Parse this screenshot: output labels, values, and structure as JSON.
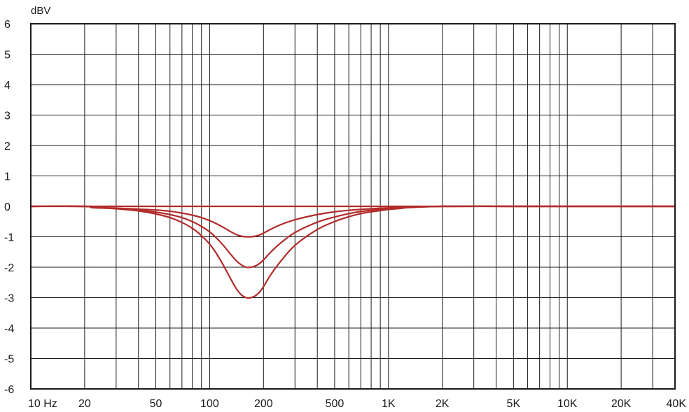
{
  "chart_data": {
    "type": "line",
    "title": "",
    "ylabel": "dBV",
    "xlabel": "",
    "xscale": "log",
    "xlim": [
      10,
      40000
    ],
    "ylim": [
      -6,
      6
    ],
    "grid": true,
    "legend": "none",
    "line_color": "#b22a2a",
    "y_ticks": [
      6,
      5,
      4,
      3,
      2,
      1,
      0,
      -1,
      -2,
      -3,
      -4,
      -5,
      -6
    ],
    "y_tick_labels": [
      "6",
      "5",
      "4",
      "3",
      "2",
      "1",
      "0",
      "-1",
      "-2",
      "-3",
      "-4",
      "-5",
      "-6"
    ],
    "x_gridlines": [
      10,
      20,
      30,
      40,
      50,
      60,
      70,
      80,
      90,
      100,
      200,
      300,
      400,
      500,
      600,
      700,
      800,
      900,
      1000,
      2000,
      3000,
      4000,
      5000,
      6000,
      7000,
      8000,
      9000,
      10000,
      20000,
      30000,
      40000
    ],
    "x_tick_values": [
      10,
      20,
      50,
      100,
      200,
      500,
      1000,
      2000,
      5000,
      10000,
      20000,
      40000
    ],
    "x_tick_labels": [
      "10 Hz",
      "20",
      "50",
      "100",
      "200",
      "500",
      "1K",
      "2K",
      "5K",
      "10K",
      "20K",
      "40K"
    ],
    "x": [
      10,
      20,
      22,
      26,
      30,
      40,
      50,
      60,
      70,
      80,
      90,
      100,
      110,
      120,
      130,
      140,
      150,
      160,
      170,
      180,
      190,
      200,
      220,
      250,
      300,
      400,
      500,
      600,
      700,
      800,
      900,
      1000,
      1100,
      1200,
      1300,
      2000,
      5000,
      10000,
      20000,
      40000
    ],
    "series": [
      {
        "values": [
          0,
          0,
          0,
          0,
          0,
          0,
          0,
          0,
          0,
          0,
          0,
          0,
          0,
          0,
          0,
          0,
          0,
          0,
          0,
          0,
          0,
          0,
          0,
          0,
          0,
          0,
          0,
          0,
          0,
          0,
          0,
          0,
          0,
          0,
          0,
          0,
          0,
          0,
          0,
          0
        ]
      },
      {
        "values": [
          0,
          0,
          -0.04,
          -0.05,
          -0.06,
          -0.09,
          -0.12,
          -0.16,
          -0.22,
          -0.29,
          -0.37,
          -0.47,
          -0.58,
          -0.7,
          -0.82,
          -0.92,
          -0.98,
          -1.0,
          -1.0,
          -0.98,
          -0.94,
          -0.88,
          -0.75,
          -0.6,
          -0.44,
          -0.27,
          -0.18,
          -0.13,
          -0.1,
          -0.08,
          -0.06,
          -0.05,
          -0.04,
          -0.03,
          -0.02,
          0,
          0,
          0,
          0,
          0
        ]
      },
      {
        "values": [
          0,
          0,
          -0.04,
          -0.05,
          -0.07,
          -0.12,
          -0.19,
          -0.27,
          -0.37,
          -0.5,
          -0.66,
          -0.84,
          -1.06,
          -1.3,
          -1.55,
          -1.77,
          -1.92,
          -2.0,
          -2.0,
          -1.96,
          -1.88,
          -1.76,
          -1.5,
          -1.2,
          -0.86,
          -0.52,
          -0.35,
          -0.24,
          -0.17,
          -0.13,
          -0.1,
          -0.08,
          -0.06,
          -0.04,
          -0.03,
          0,
          0,
          0,
          0,
          0
        ]
      },
      {
        "values": [
          0,
          0,
          -0.04,
          -0.06,
          -0.08,
          -0.15,
          -0.25,
          -0.37,
          -0.53,
          -0.72,
          -0.96,
          -1.24,
          -1.58,
          -1.96,
          -2.34,
          -2.68,
          -2.9,
          -3.0,
          -3.0,
          -2.94,
          -2.82,
          -2.64,
          -2.24,
          -1.8,
          -1.28,
          -0.76,
          -0.5,
          -0.34,
          -0.24,
          -0.18,
          -0.14,
          -0.1,
          -0.08,
          -0.06,
          -0.04,
          0,
          0,
          0,
          0,
          0
        ]
      }
    ]
  }
}
